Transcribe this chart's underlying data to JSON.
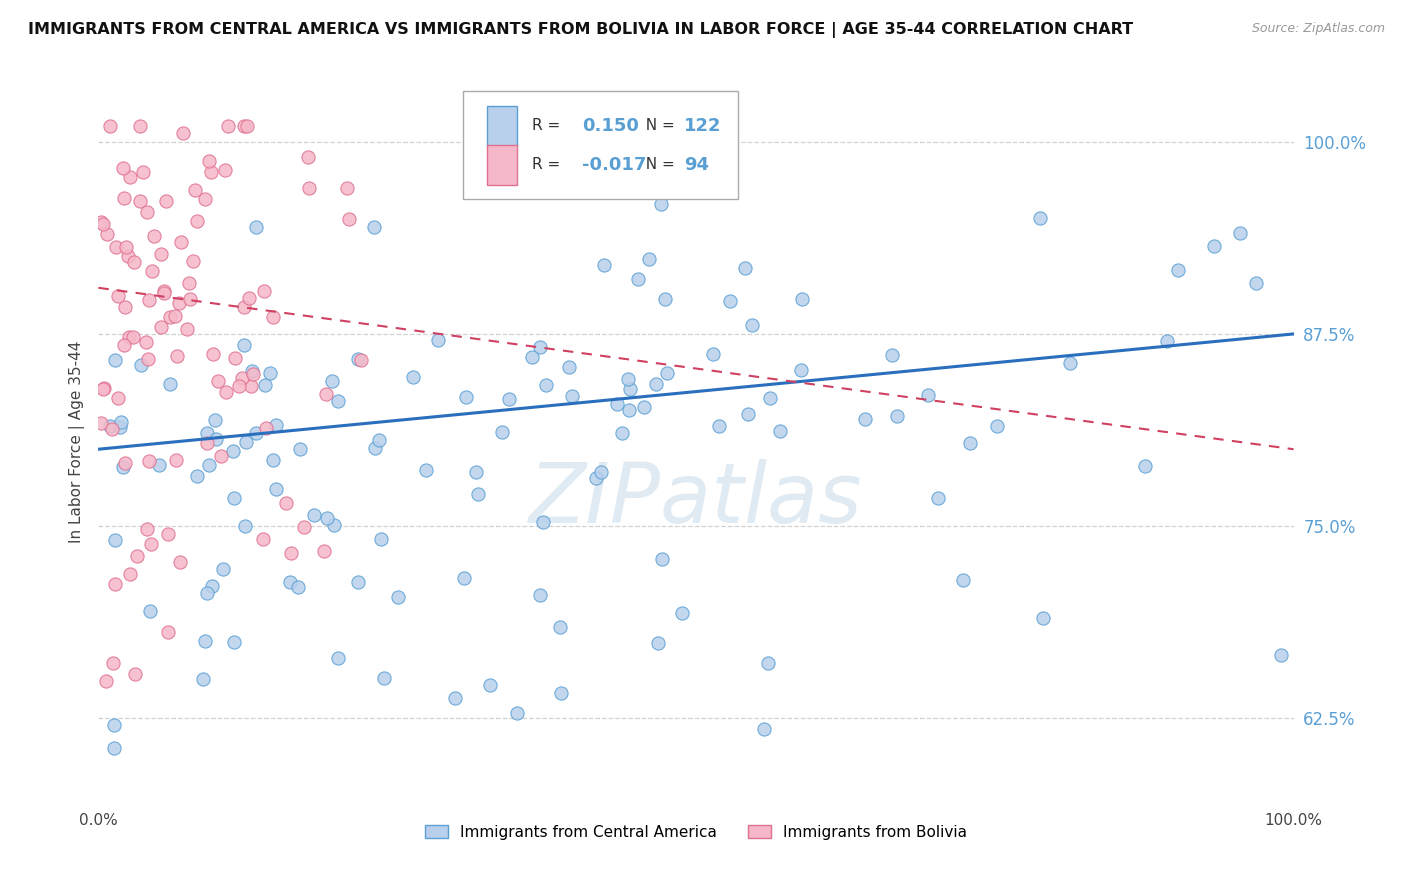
{
  "title": "IMMIGRANTS FROM CENTRAL AMERICA VS IMMIGRANTS FROM BOLIVIA IN LABOR FORCE | AGE 35-44 CORRELATION CHART",
  "source": "Source: ZipAtlas.com",
  "ylabel": "In Labor Force | Age 35-44",
  "R_blue": 0.15,
  "N_blue": 122,
  "R_pink": -0.017,
  "N_pink": 94,
  "legend_labels": [
    "Immigrants from Central America",
    "Immigrants from Bolivia"
  ],
  "blue_color": "#b8d0eb",
  "blue_edge_color": "#5a9fd4",
  "blue_line_color": "#2a6fbd",
  "pink_color": "#f5b8c8",
  "pink_edge_color": "#e07090",
  "pink_line_color": "#d04060",
  "watermark": "ZIPatlas",
  "xlim": [
    0.0,
    1.0
  ],
  "ylim": [
    0.57,
    1.04
  ],
  "yticks": [
    0.625,
    0.75,
    0.875,
    1.0
  ],
  "ytick_labels": [
    "62.5%",
    "75.0%",
    "87.5%",
    "100.0%"
  ],
  "xtick_labels": [
    "0.0%",
    "100.0%"
  ],
  "blue_trend_x0": 0.0,
  "blue_trend_y0": 0.8,
  "blue_trend_x1": 1.0,
  "blue_trend_y1": 0.875,
  "pink_trend_x0": 0.0,
  "pink_trend_y0": 0.905,
  "pink_trend_x1": 1.0,
  "pink_trend_y1": 0.8
}
